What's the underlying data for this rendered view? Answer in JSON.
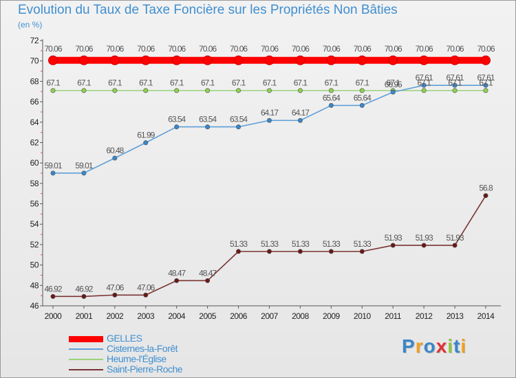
{
  "chart_data": {
    "type": "line",
    "title": "Evolution du Taux de Taxe Foncière sur les Propriétés Non Bâties",
    "subtitle": "(en %)",
    "xlabel": "",
    "ylabel": "(en %)",
    "categories": [
      "2000",
      "2001",
      "2002",
      "2003",
      "2004",
      "2005",
      "2006",
      "2007",
      "2008",
      "2009",
      "2010",
      "2011",
      "2012",
      "2013",
      "2014"
    ],
    "ylim": [
      46,
      72
    ],
    "yticks": [
      46,
      48,
      50,
      52,
      54,
      56,
      58,
      60,
      62,
      64,
      66,
      68,
      70,
      72
    ],
    "grid": false,
    "legend_position": "bottom-left",
    "series": [
      {
        "name": "GELLES",
        "color": "#ff0000",
        "values": [
          70.06,
          70.06,
          70.06,
          70.06,
          70.06,
          70.06,
          70.06,
          70.06,
          70.06,
          70.06,
          70.06,
          70.06,
          70.06,
          70.06,
          70.06
        ],
        "labels": [
          "70.06",
          "70.06",
          "70.06",
          "70.06",
          "70.06",
          "70.06",
          "70.06",
          "70.06",
          "70.06",
          "70.06",
          "70.06",
          "70.06",
          "70.06",
          "70.06",
          "70.06"
        ]
      },
      {
        "name": "Cisternes-la-Forêt",
        "color": "#5f9fd8",
        "marker_color": "#3a86c8",
        "values": [
          59.01,
          59.01,
          60.48,
          61.99,
          63.54,
          63.54,
          63.54,
          64.17,
          64.17,
          65.64,
          65.64,
          66.95,
          67.61,
          67.61,
          67.61
        ],
        "labels": [
          "59.01",
          "59.01",
          "60.48",
          "61.99",
          "63.54",
          "63.54",
          "63.54",
          "64.17",
          "64.17",
          "65.64",
          "65.64",
          "66.95",
          "67.61",
          "67.61",
          "67.61"
        ]
      },
      {
        "name": "Heume-l'Église",
        "color": "#99d37a",
        "marker_color": "#8fd14f",
        "values": [
          67.1,
          67.1,
          67.1,
          67.1,
          67.1,
          67.1,
          67.1,
          67.1,
          67.1,
          67.1,
          67.1,
          67.1,
          67.1,
          67.1,
          67.1
        ],
        "labels": [
          "67.1",
          "67.1",
          "67.1",
          "67.1",
          "67.1",
          "67.1",
          "67.1",
          "67.1",
          "67.1",
          "67.1",
          "67.1",
          "67.1",
          "67.1",
          "67.1",
          "67.1"
        ]
      },
      {
        "name": "Saint-Pierre-Roche",
        "color": "#7a3333",
        "marker_color": "#6a1818",
        "values": [
          46.92,
          46.92,
          47.06,
          47.06,
          48.47,
          48.47,
          51.33,
          51.33,
          51.33,
          51.33,
          51.33,
          51.93,
          51.93,
          51.93,
          56.8
        ],
        "labels": [
          "46.92",
          "46.92",
          "47.06",
          "47.06",
          "48.47",
          "48.47",
          "51.33",
          "51.33",
          "51.33",
          "51.33",
          "51.33",
          "51.93",
          "51.93",
          "51.93",
          "56.8"
        ]
      }
    ]
  },
  "logo": {
    "letters": [
      "P",
      "r",
      "o",
      "x",
      "i",
      "t",
      "i"
    ],
    "colors": [
      "#3a86c8",
      "#f0a020",
      "#3a86c8",
      "#e03030",
      "#8fc63a",
      "#3a86c8",
      "#f0a020"
    ]
  }
}
